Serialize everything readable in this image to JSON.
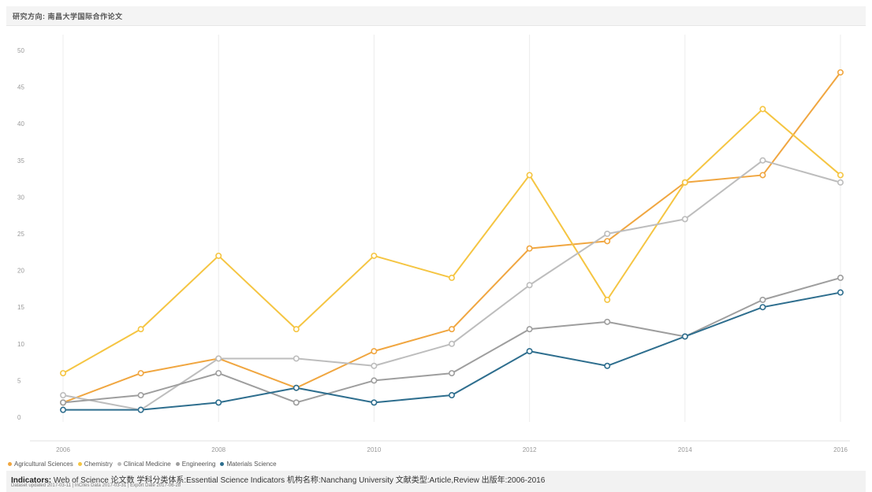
{
  "header": {
    "title": "研究方向: 南昌大学国际合作论文"
  },
  "legend": [
    {
      "name": "Agricultural Sciences",
      "color": "#f0a640"
    },
    {
      "name": "Chemistry",
      "color": "#f5c542"
    },
    {
      "name": "Clinical Medicine",
      "color": "#bdbdbd"
    },
    {
      "name": "Engineering",
      "color": "#9e9e9e"
    },
    {
      "name": "Materials Science",
      "color": "#2e6e8e"
    }
  ],
  "chart_data": {
    "type": "line",
    "x": [
      2006,
      2007,
      2008,
      2009,
      2010,
      2011,
      2012,
      2013,
      2014,
      2015,
      2016
    ],
    "x_ticks": [
      "2006",
      "2008",
      "2010",
      "2012",
      "2014",
      "2016"
    ],
    "y_ticks": [
      "0",
      "5",
      "10",
      "15",
      "20",
      "25",
      "30",
      "35",
      "40",
      "45",
      "50"
    ],
    "ylim": [
      0,
      50
    ],
    "grid": "vertical",
    "legend_position": "bottom-left",
    "series": [
      {
        "name": "Agricultural Sciences",
        "color": "#f0a640",
        "values": [
          2,
          6,
          8,
          4,
          9,
          12,
          23,
          24,
          32,
          33,
          47
        ]
      },
      {
        "name": "Chemistry",
        "color": "#f5c542",
        "values": [
          6,
          12,
          22,
          12,
          22,
          19,
          33,
          16,
          32,
          42,
          33
        ]
      },
      {
        "name": "Clinical Medicine",
        "color": "#bdbdbd",
        "values": [
          3,
          1,
          8,
          8,
          7,
          10,
          18,
          25,
          27,
          35,
          32
        ]
      },
      {
        "name": "Engineering",
        "color": "#9e9e9e",
        "values": [
          2,
          3,
          6,
          2,
          5,
          6,
          12,
          13,
          11,
          16,
          19
        ]
      },
      {
        "name": "Materials Science",
        "color": "#2e6e8e",
        "values": [
          1,
          1,
          2,
          4,
          2,
          3,
          9,
          7,
          11,
          15,
          17
        ]
      }
    ]
  },
  "footer": {
    "indicators_label": "Indicators:",
    "text": " Web of Science 论文数 学科分类体系:Essential Science Indicators 机构名称:Nanchang University 文献类型:Article,Review 出版年:2006-2016",
    "meta": "Dataset updated 2017-03-11 | InCites Data 2017-03-31 | Export Date 2017-06-28"
  }
}
